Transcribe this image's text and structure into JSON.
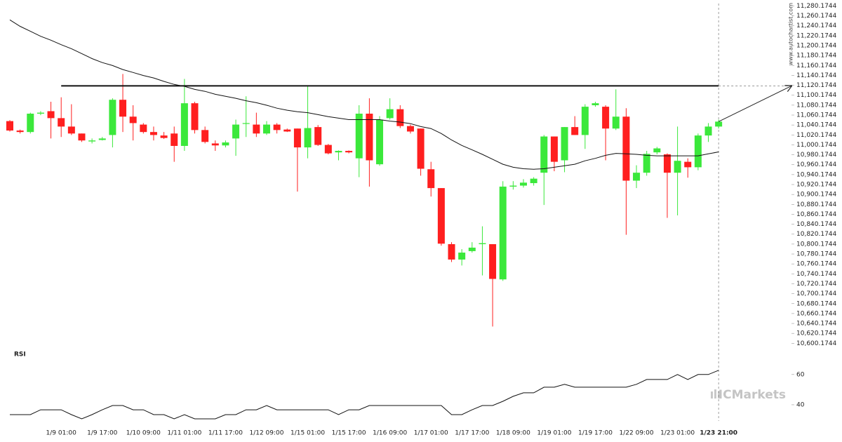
{
  "chart_data": {
    "type": "candlestick",
    "categories": [
      null,
      null,
      null,
      null,
      null,
      "1/9 01:00",
      null,
      null,
      null,
      "1/9 17:00",
      null,
      null,
      null,
      "1/10 09:00",
      null,
      null,
      null,
      "1/11 01:00",
      null,
      null,
      null,
      "1/11 17:00",
      null,
      null,
      null,
      "1/12 09:00",
      null,
      null,
      null,
      "1/15 01:00",
      null,
      null,
      null,
      "1/15 17:00",
      null,
      null,
      null,
      "1/16 09:00",
      null,
      null,
      null,
      "1/17 01:00",
      null,
      null,
      null,
      "1/17 17:00",
      null,
      null,
      null,
      "1/18 09:00",
      null,
      null,
      null,
      "1/19 01:00",
      null,
      null,
      null,
      "1/19 17:00",
      null,
      null,
      null,
      "1/22 09:00",
      null,
      null,
      null,
      "1/23 01:00",
      null,
      null,
      null,
      "1/23 21:00"
    ],
    "open": [
      11048,
      11029,
      11026,
      11063,
      11068,
      11054,
      11037,
      11023,
      11007,
      11010,
      11020,
      11091,
      11057,
      11041,
      11026,
      11019,
      11023,
      10998,
      11084,
      11030,
      11003,
      10999,
      11013,
      11043,
      11041,
      11023,
      11041,
      11031,
      11033,
      10995,
      11036,
      11000,
      10985,
      10988,
      10973,
      11063,
      10961,
      11054,
      11072,
      11038,
      11033,
      10951,
      10913,
      10800,
      10769,
      10786,
      10800,
      10800,
      10729,
      10916,
      10918,
      10923,
      10944,
      11017,
      10969,
      11036,
      11020,
      11080,
      11077,
      11033,
      11057,
      10928,
      10944,
      10985,
      10981,
      10944,
      10966,
      10955,
      11019,
      11037
    ],
    "high": [
      11050,
      11031,
      11065,
      11068,
      11087,
      11096,
      11082,
      11023,
      11013,
      11016,
      11094,
      11143,
      11080,
      11044,
      11037,
      11026,
      11037,
      11133,
      11087,
      11037,
      11009,
      11009,
      11051,
      11098,
      11065,
      11048,
      11044,
      11033,
      11033,
      11118,
      11040,
      11002,
      10989,
      10989,
      11080,
      11094,
      11058,
      11094,
      11080,
      11041,
      11033,
      10966,
      10913,
      10804,
      10790,
      10804,
      10836,
      10800,
      10927,
      10927,
      10931,
      10935,
      11020,
      11017,
      11036,
      11058,
      11082,
      11087,
      11080,
      11112,
      11074,
      10959,
      10988,
      10996,
      10983,
      11037,
      10973,
      11023,
      11044,
      11051
    ],
    "low": [
      11027,
      11023,
      11023,
      11060,
      11013,
      11016,
      11020,
      11006,
      11003,
      11009,
      10995,
      11026,
      11009,
      11023,
      11009,
      11012,
      10966,
      10988,
      11023,
      11003,
      10988,
      10995,
      10978,
      11016,
      11016,
      11020,
      11023,
      11026,
      10906,
      10973,
      10998,
      10981,
      10969,
      10983,
      10935,
      10916,
      10958,
      11051,
      11034,
      11023,
      10938,
      10896,
      10797,
      10764,
      10757,
      10783,
      10737,
      10634,
      10726,
      10910,
      10914,
      10918,
      10879,
      10947,
      10945,
      11020,
      10992,
      11077,
      10969,
      11030,
      10819,
      10913,
      10938,
      10981,
      10853,
      10858,
      10934,
      10949,
      11006,
      11033
    ],
    "close": [
      11029,
      11026,
      11063,
      11065,
      11054,
      11037,
      11023,
      11009,
      11009,
      11013,
      11091,
      11057,
      11044,
      11026,
      11020,
      11014,
      10998,
      11084,
      11030,
      11006,
      10999,
      11005,
      11041,
      11044,
      11023,
      11041,
      11030,
      11027,
      10995,
      11034,
      11000,
      10983,
      10988,
      10985,
      11063,
      10969,
      11051,
      11072,
      11038,
      11027,
      10952,
      10913,
      10801,
      10769,
      10783,
      10793,
      10802,
      10730,
      10916,
      10918,
      10924,
      10932,
      11017,
      10966,
      11036,
      11020,
      11077,
      11084,
      11033,
      11057,
      10928,
      10944,
      10982,
      10993,
      10944,
      10968,
      10955,
      11019,
      11037,
      11047
    ],
    "up_color": "#3be83b",
    "down_color": "#ff1f1f",
    "moving_average": [
      11252,
      11239,
      11229,
      11219,
      11211,
      11202,
      11194,
      11184,
      11174,
      11166,
      11160,
      11152,
      11146,
      11140,
      11135,
      11128,
      11122,
      11118,
      11112,
      11108,
      11102,
      11098,
      11094,
      11089,
      11085,
      11080,
      11074,
      11070,
      11067,
      11065,
      11061,
      11057,
      11054,
      11051,
      11051,
      11051,
      11051,
      11048,
      11046,
      11043,
      11037,
      11033,
      11023,
      11010,
      10999,
      10990,
      10981,
      10971,
      10961,
      10955,
      10952,
      10951,
      10952,
      10955,
      10958,
      10961,
      10968,
      10973,
      10979,
      10983,
      10982,
      10981,
      10979,
      10978,
      10978,
      10978,
      10978,
      10978,
      10982,
      10986
    ],
    "resistance": 11119,
    "ylim": [
      10595,
      11285
    ],
    "yticks": [
      {
        "value": 11280.1744,
        "label": "11,280.1744"
      },
      {
        "value": 11260.1744,
        "label": "11,260.1744"
      },
      {
        "value": 11240.1744,
        "label": "11,240.1744"
      },
      {
        "value": 11220.1744,
        "label": "11,220.1744"
      },
      {
        "value": 11200.1744,
        "label": "11,200.1744"
      },
      {
        "value": 11180.1744,
        "label": "11,180.1744"
      },
      {
        "value": 11160.1744,
        "label": "11,160.1744"
      },
      {
        "value": 11140.1744,
        "label": "11,140.1744"
      },
      {
        "value": 11120.1744,
        "label": "11,120.1744"
      },
      {
        "value": 11100.1744,
        "label": "11,100.1744"
      },
      {
        "value": 11080.1744,
        "label": "11,080.1744"
      },
      {
        "value": 11060.1744,
        "label": "11,060.1744"
      },
      {
        "value": 11040.1744,
        "label": "11,040.1744"
      },
      {
        "value": 11020.1744,
        "label": "11,020.1744"
      },
      {
        "value": 11000.1744,
        "label": "11,000.1744"
      },
      {
        "value": 10980.1744,
        "label": "10,980.1744"
      },
      {
        "value": 10960.1744,
        "label": "10,960.1744"
      },
      {
        "value": 10940.1744,
        "label": "10,940.1744"
      },
      {
        "value": 10920.1744,
        "label": "10,920.1744"
      },
      {
        "value": 10900.1744,
        "label": "10,900.1744"
      },
      {
        "value": 10880.1744,
        "label": "10,880.1744"
      },
      {
        "value": 10860.1744,
        "label": "10,860.1744"
      },
      {
        "value": 10840.1744,
        "label": "10,840.1744"
      },
      {
        "value": 10820.1744,
        "label": "10,820.1744"
      },
      {
        "value": 10800.1744,
        "label": "10,800.1744"
      },
      {
        "value": 10780.1744,
        "label": "10,780.1744"
      },
      {
        "value": 10760.1744,
        "label": "10,760.1744"
      },
      {
        "value": 10740.1744,
        "label": "10,740.1744"
      },
      {
        "value": 10720.1744,
        "label": "10,720.1744"
      },
      {
        "value": 10700.1744,
        "label": "10,700.1744"
      },
      {
        "value": 10680.1744,
        "label": "10,680.1744"
      },
      {
        "value": 10660.1744,
        "label": "10,660.1744"
      },
      {
        "value": 10640.1744,
        "label": "10,640.1744"
      },
      {
        "value": 10620.1744,
        "label": "10,620.1744"
      },
      {
        "value": 10600.1744,
        "label": "10,600.1744"
      }
    ],
    "rsi": {
      "label": "RSI",
      "values": [
        33.5,
        33.5,
        33.5,
        36.7,
        36.7,
        36.7,
        33.5,
        30.7,
        33.5,
        36.7,
        39.5,
        39.5,
        36.7,
        36.7,
        33.5,
        33.5,
        30.7,
        33.5,
        30.7,
        30.7,
        30.7,
        33.5,
        33.5,
        36.7,
        36.7,
        39.5,
        36.7,
        36.7,
        36.7,
        36.7,
        36.7,
        36.7,
        33.5,
        36.7,
        36.7,
        39.5,
        39.5,
        39.5,
        39.5,
        39.5,
        39.5,
        39.5,
        39.5,
        33.5,
        33.5,
        36.7,
        39.5,
        39.5,
        42.3,
        45.6,
        47.9,
        47.9,
        51.6,
        51.6,
        53.5,
        51.6,
        51.6,
        51.6,
        51.6,
        51.6,
        51.6,
        53.5,
        56.7,
        56.7,
        56.7,
        60,
        56.7,
        60,
        60,
        62.8
      ],
      "ylim": [
        30,
        78
      ],
      "yticks": [
        60,
        40
      ]
    },
    "watermark": "www.autochartist.com",
    "logo_text": "ICMarkets"
  }
}
